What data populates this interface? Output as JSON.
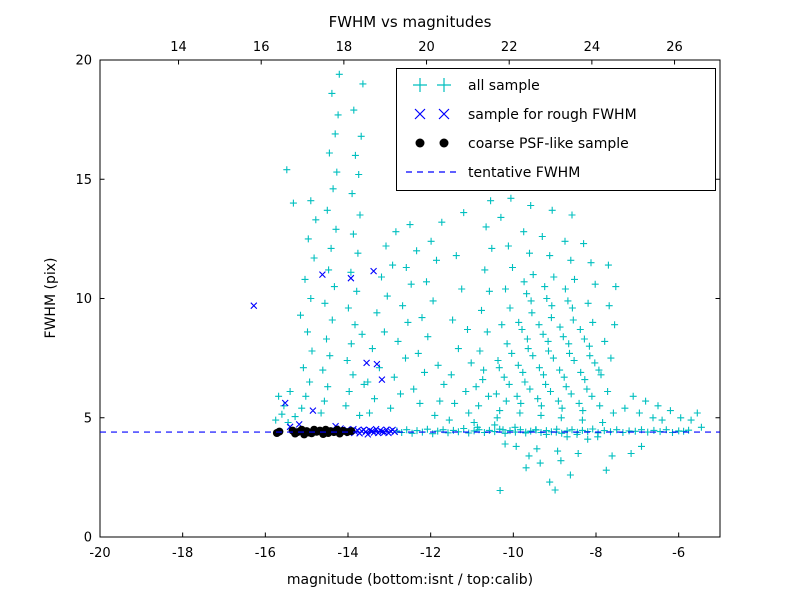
{
  "chart_data": {
    "type": "scatter",
    "title": "FWHM vs magnitudes",
    "xlabel": "magnitude (bottom:isnt / top:calib)",
    "ylabel": "FWHM (pix)",
    "grid": false,
    "legend_position": "upper right",
    "axes": {
      "xlim": [
        -20,
        -5
      ],
      "ylim": [
        0,
        20
      ],
      "bottom_ticks": {
        "values": [
          -20,
          -18,
          -16,
          -14,
          -12,
          -10,
          -8,
          -6
        ],
        "labels": [
          "-20",
          "-18",
          "-16",
          "-14",
          "-12",
          "-10",
          "-8",
          "-6"
        ]
      },
      "top_ticks": {
        "values": [
          14,
          16,
          18,
          20,
          22,
          24,
          26
        ],
        "labels": [
          "14",
          "16",
          "18",
          "20",
          "22",
          "24",
          "26"
        ],
        "data_offset": 32.1
      },
      "left_ticks": {
        "values": [
          0,
          5,
          10,
          15,
          20
        ],
        "labels": [
          "0",
          "5",
          "10",
          "15",
          "20"
        ]
      }
    },
    "tentative_fwhm_value": 4.4,
    "series": [
      {
        "name": "all sample",
        "marker": "+",
        "color": "#00bfbf",
        "xy": [
          -15.28,
          5.05,
          -15.12,
          5.4,
          -15.02,
          5.9,
          -14.93,
          6.5,
          -15.08,
          7.1,
          -14.87,
          7.8,
          -14.98,
          8.6,
          -15.15,
          9.3,
          -14.9,
          10.0,
          -15.04,
          10.8,
          -14.82,
          11.7,
          -14.96,
          12.5,
          -14.78,
          13.3,
          -14.9,
          14.1,
          -14.65,
          5.2,
          -14.57,
          5.7,
          -14.49,
          6.3,
          -14.61,
          7.0,
          -14.44,
          7.6,
          -14.52,
          8.3,
          -14.38,
          9.1,
          -14.56,
          9.8,
          -14.33,
          10.5,
          -14.47,
          11.2,
          -14.41,
          12.1,
          -14.29,
          12.9,
          -14.5,
          13.7,
          -14.36,
          14.6,
          -14.27,
          15.3,
          -14.45,
          16.1,
          -14.31,
          16.9,
          -14.24,
          17.7,
          -14.39,
          18.6,
          -14.21,
          19.4,
          -14.05,
          5.5,
          -13.97,
          6.1,
          -13.88,
          6.8,
          -14.02,
          7.4,
          -13.92,
          8.1,
          -13.83,
          8.9,
          -13.99,
          9.6,
          -13.79,
          10.3,
          -13.93,
          11.1,
          -13.76,
          11.9,
          -13.87,
          12.7,
          -13.71,
          13.5,
          -13.9,
          14.4,
          -13.74,
          15.2,
          -13.82,
          16.0,
          -13.68,
          16.8,
          -13.86,
          17.9,
          -13.64,
          19.0,
          -13.61,
          6.4,
          -13.66,
          8.5,
          -13.72,
          5.1,
          -15.75,
          4.9,
          -15.6,
          5.15,
          -15.45,
          4.8,
          -15.55,
          5.5,
          -15.68,
          5.9,
          -15.4,
          6.1,
          -15.48,
          15.4,
          -15.32,
          14.0,
          -13.48,
          5.2,
          -13.36,
          5.8,
          -13.52,
          6.5,
          -13.24,
          7.1,
          -13.41,
          7.9,
          -13.12,
          8.6,
          -13.3,
          9.4,
          -13.05,
          10.1,
          -13.19,
          10.9,
          -12.92,
          11.4,
          -13.08,
          12.2,
          -12.84,
          12.8,
          -12.97,
          5.4,
          -12.73,
          6.0,
          -12.88,
          6.7,
          -12.61,
          7.5,
          -12.79,
          8.2,
          -12.55,
          9.0,
          -12.68,
          9.7,
          -12.47,
          10.6,
          -12.59,
          11.3,
          -12.34,
          12.0,
          -12.5,
          13.1,
          -12.26,
          5.6,
          -12.41,
          6.2,
          -12.15,
          6.9,
          -12.3,
          7.7,
          -12.07,
          8.4,
          -12.21,
          9.2,
          -11.94,
          9.9,
          -12.1,
          10.7,
          -11.86,
          11.6,
          -11.99,
          12.4,
          -11.73,
          13.2,
          -11.9,
          5.1,
          -11.78,
          5.7,
          -11.68,
          6.4,
          -11.82,
          7.2,
          -11.55,
          4.9,
          -11.42,
          5.6,
          -11.5,
          6.8,
          -11.33,
          7.9,
          -11.47,
          9.1,
          -11.25,
          10.4,
          -11.38,
          11.8,
          -11.2,
          13.6,
          -11.08,
          5.2,
          -11.15,
          6.1,
          -11.02,
          7.3,
          -11.11,
          8.7,
          -10.95,
          4.8,
          -10.84,
          5.5,
          -10.9,
          6.3,
          -10.72,
          7.0,
          -10.81,
          7.8,
          -10.63,
          8.6,
          -10.77,
          9.5,
          -10.58,
          10.3,
          -10.69,
          11.2,
          -10.52,
          12.1,
          -10.66,
          13.0,
          -10.55,
          14.1,
          -10.87,
          4.6,
          -10.6,
          5.9,
          -10.74,
          6.6,
          -10.45,
          4.7,
          -10.33,
          5.3,
          -10.41,
          6.0,
          -10.22,
          6.7,
          -10.37,
          7.4,
          -10.15,
          8.1,
          -10.28,
          8.9,
          -10.08,
          9.6,
          -10.19,
          10.4,
          -10.02,
          11.3,
          -10.12,
          12.2,
          -10.3,
          13.4,
          -10.06,
          14.2,
          -10.39,
          5.0,
          -10.17,
          5.7,
          -10.25,
          4.5,
          -10.1,
          6.4,
          -10.34,
          7.1,
          -10.04,
          7.7,
          -10.2,
          3.9,
          -9.96,
          4.6,
          -9.84,
          5.2,
          -9.91,
          5.9,
          -9.72,
          6.5,
          -9.88,
          7.2,
          -9.64,
          7.9,
          -9.79,
          8.7,
          -9.55,
          9.4,
          -9.68,
          10.2,
          -9.52,
          11.0,
          -9.61,
          11.9,
          -9.75,
          12.8,
          -9.58,
          13.9,
          -9.93,
          3.8,
          -9.7,
          4.4,
          -9.82,
          5.6,
          -9.6,
          6.2,
          -9.77,
          6.9,
          -9.53,
          7.6,
          -9.66,
          8.3,
          -9.87,
          9.0,
          -9.57,
          9.9,
          -9.74,
          10.7,
          -9.62,
          3.4,
          -9.69,
          2.9,
          -9.46,
          4.5,
          -9.33,
          5.1,
          -9.41,
          5.8,
          -9.22,
          6.4,
          -9.37,
          7.1,
          -9.15,
          7.8,
          -9.28,
          8.5,
          -9.08,
          9.2,
          -9.19,
          10.0,
          -9.02,
          10.9,
          -9.12,
          11.8,
          -9.3,
          12.6,
          -9.06,
          13.7,
          -9.43,
          3.7,
          -9.2,
          4.3,
          -9.32,
          5.5,
          -9.1,
          6.1,
          -9.27,
          6.8,
          -9.03,
          7.5,
          -9.16,
          8.2,
          -9.38,
          8.9,
          -9.07,
          9.7,
          -9.24,
          10.5,
          -9.12,
          2.3,
          -9.35,
          3.1,
          -8.96,
          4.4,
          -8.84,
          5.0,
          -8.91,
          5.7,
          -8.72,
          6.3,
          -8.88,
          7.0,
          -8.64,
          7.7,
          -8.79,
          8.4,
          -8.55,
          9.1,
          -8.68,
          9.9,
          -8.52,
          10.8,
          -8.61,
          11.6,
          -8.75,
          12.4,
          -8.58,
          13.5,
          -8.93,
          3.6,
          -8.7,
          4.2,
          -8.82,
          5.4,
          -8.6,
          6.0,
          -8.77,
          6.7,
          -8.53,
          7.4,
          -8.66,
          8.1,
          -8.87,
          8.8,
          -8.57,
          9.6,
          -8.74,
          10.4,
          -8.62,
          2.6,
          -8.85,
          3.2,
          -8.46,
          4.3,
          -8.33,
          4.9,
          -8.41,
          5.6,
          -8.22,
          6.2,
          -8.37,
          6.9,
          -8.15,
          7.6,
          -8.28,
          8.3,
          -8.08,
          9.0,
          -8.19,
          9.8,
          -8.02,
          10.6,
          -8.12,
          11.5,
          -8.3,
          12.3,
          -8.43,
          3.5,
          -8.2,
          4.1,
          -8.32,
          5.3,
          -8.1,
          5.9,
          -8.27,
          6.6,
          -8.03,
          7.3,
          -8.16,
          8.0,
          -8.38,
          8.7,
          -7.96,
          4.2,
          -7.84,
          4.8,
          -7.91,
          5.5,
          -7.72,
          6.1,
          -7.88,
          6.8,
          -7.64,
          7.5,
          -7.79,
          8.2,
          -7.55,
          8.9,
          -7.68,
          9.7,
          -7.52,
          10.5,
          -7.61,
          3.4,
          -7.75,
          2.8,
          -7.58,
          5.2,
          -7.93,
          7.0,
          -7.7,
          11.4,
          -12.82,
          4.45,
          -12.7,
          4.38,
          -12.58,
          4.5,
          -12.45,
          4.35,
          -12.33,
          4.46,
          -12.2,
          4.4,
          -12.08,
          4.52,
          -11.95,
          4.33,
          -11.83,
          4.44,
          -11.7,
          4.5,
          -11.58,
          4.37,
          -11.45,
          4.47,
          -11.33,
          4.41,
          -11.2,
          4.55,
          -11.08,
          4.36,
          -10.95,
          4.45,
          -10.83,
          4.5,
          -10.7,
          4.38,
          -10.58,
          4.47,
          -10.45,
          4.42,
          -10.33,
          4.52,
          -10.2,
          4.35,
          -10.08,
          4.46,
          -9.95,
          4.4,
          -9.83,
          4.5,
          -9.7,
          4.36,
          -9.58,
          4.44,
          -9.45,
          4.49,
          -9.33,
          4.38,
          -9.2,
          4.46,
          -9.08,
          4.41,
          -8.95,
          4.52,
          -8.83,
          4.35,
          -8.7,
          4.45,
          -8.58,
          4.5,
          -8.45,
          4.39,
          -8.33,
          4.47,
          -8.2,
          4.42,
          -8.08,
          4.53,
          -7.95,
          4.37,
          -7.8,
          4.46,
          -7.65,
          4.41,
          -7.5,
          4.5,
          -7.35,
          4.38,
          -7.2,
          4.45,
          -7.05,
          4.43,
          -6.9,
          4.5,
          -6.75,
          4.4,
          -6.6,
          4.47,
          -6.45,
          4.42,
          -6.3,
          4.5,
          -6.15,
          4.38,
          -6.0,
          4.45,
          -5.88,
          4.43,
          -5.76,
          4.48,
          -7.3,
          5.4,
          -7.1,
          5.9,
          -6.95,
          5.2,
          -6.8,
          5.7,
          -6.62,
          5.0,
          -6.5,
          5.5,
          -6.9,
          3.8,
          -7.15,
          3.5,
          -6.4,
          4.9,
          -6.2,
          5.3,
          -5.95,
          5.0,
          -5.7,
          4.9,
          -5.55,
          5.2,
          -5.45,
          4.6,
          -10.32,
          1.95,
          -8.99,
          1.97,
          -10.15,
          14.8
        ]
      },
      {
        "name": "sample for rough FWHM",
        "marker": "x",
        "color": "#0000ff",
        "xy": [
          -14.08,
          4.42,
          -14.02,
          4.5,
          -13.97,
          4.36,
          -13.92,
          4.46,
          -13.87,
          4.52,
          -13.82,
          4.4,
          -13.77,
          4.47,
          -13.72,
          4.35,
          -13.67,
          4.44,
          -13.62,
          4.5,
          -13.57,
          4.41,
          -13.52,
          4.3,
          -13.47,
          4.48,
          -13.42,
          4.43,
          -13.37,
          4.38,
          -13.32,
          4.52,
          -13.27,
          4.36,
          -13.22,
          4.47,
          -13.17,
          4.42,
          -13.12,
          4.39,
          -13.07,
          4.5,
          -13.02,
          4.36,
          -12.97,
          4.44,
          -12.92,
          4.49,
          -12.87,
          4.41,
          -16.28,
          9.7,
          -15.52,
          5.62,
          -15.4,
          4.62,
          -15.18,
          4.72,
          -14.85,
          5.3,
          -14.62,
          11.0,
          -13.93,
          10.85,
          -13.38,
          11.15,
          -13.3,
          7.25,
          -13.18,
          6.6,
          -13.55,
          7.3,
          -14.3,
          4.65,
          -14.18,
          4.55
        ]
      },
      {
        "name": "coarse PSF-like sample",
        "marker": "o",
        "color": "#000000",
        "xy": [
          -15.72,
          4.36,
          -15.66,
          4.42,
          -15.34,
          4.46,
          -15.28,
          4.34,
          -15.22,
          4.4,
          -15.12,
          4.5,
          -15.06,
          4.3,
          -15.0,
          4.44,
          -14.94,
          4.38,
          -14.88,
          4.35,
          -14.82,
          4.5,
          -14.76,
          4.41,
          -14.68,
          4.46,
          -14.6,
          4.32,
          -14.54,
          4.5,
          -14.48,
          4.36,
          -14.42,
          4.44,
          -14.34,
          4.4,
          -14.26,
          4.5,
          -14.2,
          4.34,
          -14.12,
          4.45,
          -14.02,
          4.4,
          -13.92,
          4.44
        ]
      },
      {
        "name": "tentative FWHM",
        "marker": "dashed-line",
        "color": "#0000ff",
        "y": 4.4
      }
    ]
  }
}
